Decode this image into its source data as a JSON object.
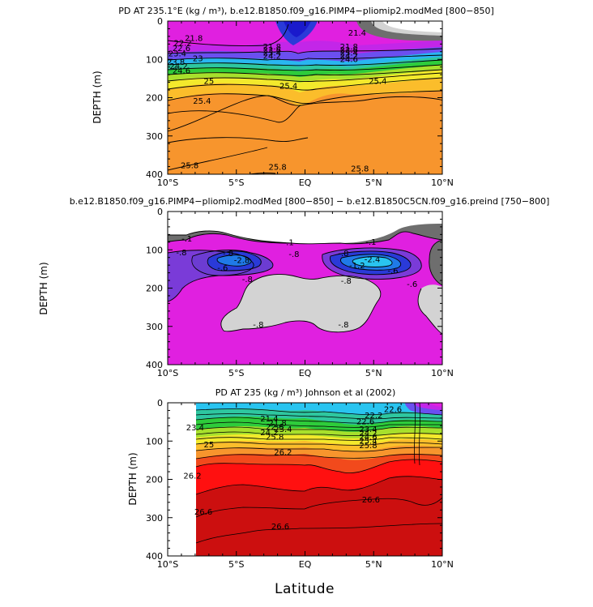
{
  "chart_data": [
    {
      "type": "contour",
      "title": "PD AT 235.1°E (kg / m³), b.e12.B1850.f09_g16.PIMP4−pliomip2.modMed [800−850]",
      "xlabel": "",
      "ylabel": "DEPTH (m)",
      "xlim": [
        -10,
        10
      ],
      "ylim": [
        400,
        0
      ],
      "x_ticks": [
        -10,
        -5,
        0,
        5,
        10
      ],
      "x_tick_labels": [
        "10°S",
        "5°S",
        "EQ",
        "5°N",
        "10°N"
      ],
      "y_ticks": [
        0,
        100,
        200,
        300,
        400
      ],
      "y_tick_labels": [
        "0",
        "100",
        "200",
        "300",
        "400"
      ],
      "contour_labels": [
        {
          "lat": -8.1,
          "depth": 45,
          "text": "21.8"
        },
        {
          "lat": -8.9,
          "depth": 58,
          "text": "22.2"
        },
        {
          "lat": -9.0,
          "depth": 72,
          "text": "22.6"
        },
        {
          "lat": -9.3,
          "depth": 86,
          "text": "23.4"
        },
        {
          "lat": -7.8,
          "depth": 98,
          "text": "23"
        },
        {
          "lat": -9.4,
          "depth": 108,
          "text": "23.8"
        },
        {
          "lat": -9.2,
          "depth": 118,
          "text": "24.2"
        },
        {
          "lat": -9.0,
          "depth": 130,
          "text": "24.6"
        },
        {
          "lat": -7.0,
          "depth": 158,
          "text": "25"
        },
        {
          "lat": -1.2,
          "depth": 170,
          "text": "25.4"
        },
        {
          "lat": -7.5,
          "depth": 210,
          "text": "25.4"
        },
        {
          "lat": 5.3,
          "depth": 158,
          "text": "25.4"
        },
        {
          "lat": 3.8,
          "depth": 32,
          "text": "21.4"
        },
        {
          "lat": -2.4,
          "depth": 68,
          "text": "21.8"
        },
        {
          "lat": -2.4,
          "depth": 76,
          "text": "22.6"
        },
        {
          "lat": -2.4,
          "depth": 84,
          "text": "23.4"
        },
        {
          "lat": -2.4,
          "depth": 92,
          "text": "24.2"
        },
        {
          "lat": 3.2,
          "depth": 68,
          "text": "21.8"
        },
        {
          "lat": 3.2,
          "depth": 76,
          "text": "22.6"
        },
        {
          "lat": 3.2,
          "depth": 84,
          "text": "23.4"
        },
        {
          "lat": 3.2,
          "depth": 92,
          "text": "24.2"
        },
        {
          "lat": 3.2,
          "depth": 100,
          "text": "24.6"
        },
        {
          "lat": -8.4,
          "depth": 378,
          "text": "25.8"
        },
        {
          "lat": -2.0,
          "depth": 382,
          "text": "25.8"
        },
        {
          "lat": 4.0,
          "depth": 386,
          "text": "25.8"
        }
      ]
    },
    {
      "type": "contour",
      "title": "b.e12.B1850.f09_g16.PIMP4−pliomip2.modMed [800−850] − b.e12.B1850C5CN.f09_g16.preind [750−800]",
      "xlabel": "",
      "ylabel": "DEPTH (m)",
      "xlim": [
        -10,
        10
      ],
      "ylim": [
        400,
        0
      ],
      "x_ticks": [
        -10,
        -5,
        0,
        5,
        10
      ],
      "x_tick_labels": [
        "10°S",
        "5°S",
        "EQ",
        "5°N",
        "10°N"
      ],
      "y_ticks": [
        0,
        100,
        200,
        300,
        400
      ],
      "y_tick_labels": [
        "0",
        "100",
        "200",
        "300",
        "400"
      ],
      "contour_labels": [
        {
          "lat": -8.6,
          "depth": 72,
          "text": "-.1"
        },
        {
          "lat": -1.2,
          "depth": 82,
          "text": "-.1"
        },
        {
          "lat": 4.8,
          "depth": 80,
          "text": "-.1"
        },
        {
          "lat": -9.0,
          "depth": 108,
          "text": "-.8"
        },
        {
          "lat": -5.6,
          "depth": 110,
          "text": "-.8"
        },
        {
          "lat": -0.8,
          "depth": 112,
          "text": "-.8"
        },
        {
          "lat": 2.8,
          "depth": 110,
          "text": "-.8"
        },
        {
          "lat": -4.6,
          "depth": 128,
          "text": "-2.8"
        },
        {
          "lat": -6.0,
          "depth": 148,
          "text": "-.6"
        },
        {
          "lat": 4.9,
          "depth": 126,
          "text": "-2.4"
        },
        {
          "lat": 3.8,
          "depth": 142,
          "text": "-1.2"
        },
        {
          "lat": 6.4,
          "depth": 156,
          "text": "-.6"
        },
        {
          "lat": -4.2,
          "depth": 178,
          "text": "-.8"
        },
        {
          "lat": 3.0,
          "depth": 182,
          "text": "-.8"
        },
        {
          "lat": 7.8,
          "depth": 190,
          "text": "-.6"
        },
        {
          "lat": -3.4,
          "depth": 296,
          "text": "-.8"
        },
        {
          "lat": 2.8,
          "depth": 296,
          "text": "-.8"
        }
      ]
    },
    {
      "type": "contour",
      "title": "PD AT 235 (kg / m³) Johnson et al (2002)",
      "xlabel": "Latitude",
      "ylabel": "DEPTH (m)",
      "xlim": [
        -10,
        10
      ],
      "ylim": [
        400,
        0
      ],
      "x_ticks": [
        -10,
        -5,
        0,
        5,
        10
      ],
      "x_tick_labels": [
        "10°S",
        "5°S",
        "EQ",
        "5°N",
        "10°N"
      ],
      "y_ticks": [
        0,
        100,
        200,
        300,
        400
      ],
      "y_tick_labels": [
        "0",
        "100",
        "200",
        "300",
        "400"
      ],
      "contour_labels": [
        {
          "lat": -8.0,
          "depth": 66,
          "text": "23.4"
        },
        {
          "lat": -7.0,
          "depth": 110,
          "text": "25"
        },
        {
          "lat": -8.2,
          "depth": 192,
          "text": "26.2"
        },
        {
          "lat": -7.4,
          "depth": 286,
          "text": "26.6"
        },
        {
          "lat": -1.8,
          "depth": 324,
          "text": "26.6"
        },
        {
          "lat": 4.8,
          "depth": 254,
          "text": "26.6"
        },
        {
          "lat": -2.6,
          "depth": 42,
          "text": "21.4"
        },
        {
          "lat": -2.0,
          "depth": 54,
          "text": "21.8"
        },
        {
          "lat": -2.2,
          "depth": 64,
          "text": "22.6"
        },
        {
          "lat": -1.6,
          "depth": 70,
          "text": "23.4"
        },
        {
          "lat": -2.6,
          "depth": 78,
          "text": "24.2"
        },
        {
          "lat": -2.2,
          "depth": 90,
          "text": "25.8"
        },
        {
          "lat": -1.6,
          "depth": 130,
          "text": "26.2"
        },
        {
          "lat": 5.0,
          "depth": 34,
          "text": "22.2"
        },
        {
          "lat": 4.4,
          "depth": 50,
          "text": "22.6"
        },
        {
          "lat": 4.6,
          "depth": 70,
          "text": "23.4"
        },
        {
          "lat": 4.6,
          "depth": 80,
          "text": "24.2"
        },
        {
          "lat": 4.6,
          "depth": 90,
          "text": "24.6"
        },
        {
          "lat": 4.6,
          "depth": 100,
          "text": "25.4"
        },
        {
          "lat": 4.6,
          "depth": 112,
          "text": "25.8"
        },
        {
          "lat": 6.4,
          "depth": 18,
          "text": "22.6"
        }
      ]
    }
  ]
}
